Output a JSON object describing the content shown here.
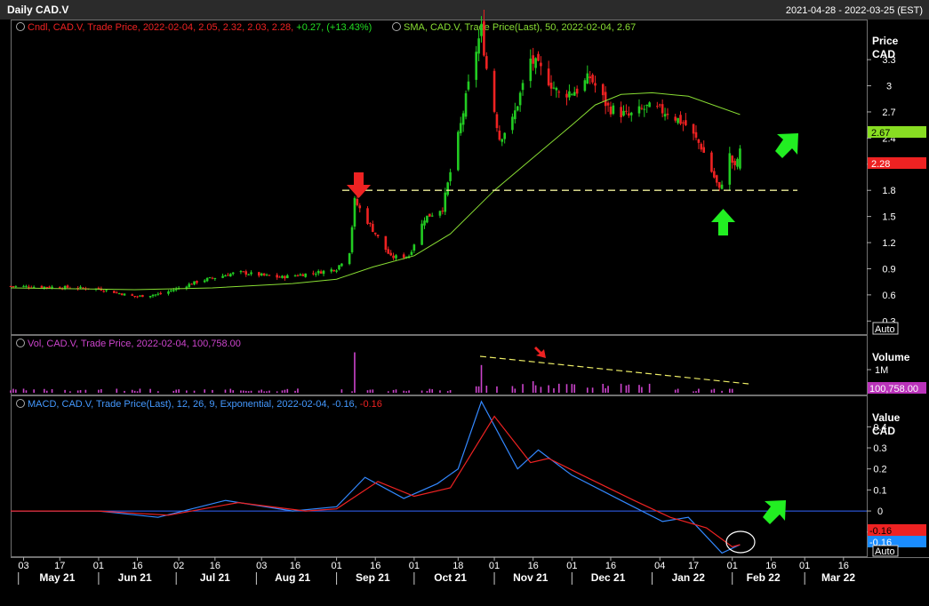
{
  "header": {
    "title": "Daily CAD.V",
    "range": "2021-04-28 - 2022-03-25 (EST)"
  },
  "colors": {
    "background": "#000000",
    "up": "#22cc22",
    "down": "#ee2222",
    "sma": "#88dd33",
    "volume": "#cc44cc",
    "macd": "#3388ff",
    "signal": "#ee2222",
    "zero_line": "#3366ff",
    "dashed": "#eeee88",
    "arrow_green": "#22ee22",
    "arrow_red": "#ee2222",
    "axis_text": "#ffffff"
  },
  "price_panel": {
    "legend_candle": "Cndl, CAD.V, Trade Price, 2022-02-04, 2.05, 2.32, 2.03, 2.28,",
    "legend_change": "+0.27, (+13.43%)",
    "legend_sma": "SMA, CAD.V, Trade Price(Last), 50, 2022-02-04, 2.67",
    "axis_title_1": "Price",
    "axis_title_2": "CAD",
    "y_ticks": [
      "3.3",
      "3",
      "2.7",
      "2.4",
      "2.1",
      "1.8",
      "1.5",
      "1.2",
      "0.9",
      "0.6",
      "0.3"
    ],
    "y_tick_values": [
      3.3,
      3.0,
      2.7,
      2.4,
      2.1,
      1.8,
      1.5,
      1.2,
      0.9,
      0.6,
      0.3
    ],
    "ylim": [
      0.15,
      3.75
    ],
    "sma_badge": "2.67",
    "last_badge": "2.28",
    "auto_label": "Auto",
    "support_level": 1.8
  },
  "volume_panel": {
    "legend": "Vol, CAD.V, Trade Price, 2022-02-04, 100,758.00",
    "axis_title": "Volume",
    "tick_label": "1M",
    "badge": "100,758.00",
    "ymax": 2000000
  },
  "macd_panel": {
    "legend": "MACD, CAD.V, Trade Price(Last), 12, 26, 9, Exponential, 2022-02-04, -0.16,",
    "legend_value": "-0.16",
    "axis_title_1": "Value",
    "axis_title_2": "CAD",
    "y_ticks": [
      "0.4",
      "0.3",
      "0.2",
      "0.1",
      "0",
      "-0.1"
    ],
    "y_tick_values": [
      0.4,
      0.3,
      0.2,
      0.1,
      0,
      -0.1
    ],
    "ylim": [
      -0.215,
      0.545
    ],
    "signal_badge": "-0.16",
    "macd_badge": "-0.16",
    "auto_label": "Auto"
  },
  "time_axis": {
    "day_ticks": [
      "03",
      "17",
      "01",
      "16",
      "02",
      "16",
      "03",
      "16",
      "01",
      "16",
      "01",
      "18",
      "01",
      "16",
      "01",
      "16",
      "04",
      "17",
      "01",
      "16",
      "01",
      "16"
    ],
    "month_labels": [
      "May 21",
      "Jun 21",
      "Jul 21",
      "Aug 21",
      "Sep 21",
      "Oct 21",
      "Nov 21",
      "Dec 21",
      "Jan 22",
      "Feb 22",
      "Mar 22"
    ]
  },
  "chart_data": [
    {
      "type": "candlestick",
      "title": "Daily CAD.V",
      "x_start": "2021-04-28",
      "x_end": "2022-03-25",
      "last_candle": {
        "date": "2022-02-04",
        "open": 2.05,
        "high": 2.32,
        "low": 2.03,
        "close": 2.28
      },
      "keypoints": [
        {
          "date": "2021-04-28",
          "close": 0.7
        },
        {
          "date": "2021-05-15",
          "close": 0.69
        },
        {
          "date": "2021-06-01",
          "close": 0.67
        },
        {
          "date": "2021-06-15",
          "close": 0.58
        },
        {
          "date": "2021-06-25",
          "close": 0.61
        },
        {
          "date": "2021-07-10",
          "close": 0.76
        },
        {
          "date": "2021-07-25",
          "close": 0.86
        },
        {
          "date": "2021-08-10",
          "close": 0.8
        },
        {
          "date": "2021-08-25",
          "close": 0.86
        },
        {
          "date": "2021-09-01",
          "close": 0.9
        },
        {
          "date": "2021-09-06",
          "close": 1.1
        },
        {
          "date": "2021-09-08",
          "close": 1.68
        },
        {
          "date": "2021-09-15",
          "close": 1.35
        },
        {
          "date": "2021-09-22",
          "close": 1.03
        },
        {
          "date": "2021-09-29",
          "close": 1.05
        },
        {
          "date": "2021-10-05",
          "close": 1.48
        },
        {
          "date": "2021-10-12",
          "close": 1.6
        },
        {
          "date": "2021-10-19",
          "close": 2.55
        },
        {
          "date": "2021-10-24",
          "close": 3.3
        },
        {
          "date": "2021-10-27",
          "close": 3.65
        },
        {
          "date": "2021-10-29",
          "close": 3.2
        },
        {
          "date": "2021-11-03",
          "close": 2.4
        },
        {
          "date": "2021-11-08",
          "close": 2.6
        },
        {
          "date": "2021-11-15",
          "close": 3.3
        },
        {
          "date": "2021-11-20",
          "close": 3.15
        },
        {
          "date": "2021-11-26",
          "close": 2.9
        },
        {
          "date": "2021-12-03",
          "close": 2.95
        },
        {
          "date": "2021-12-08",
          "close": 3.1
        },
        {
          "date": "2021-12-15",
          "close": 2.75
        },
        {
          "date": "2021-12-23",
          "close": 2.65
        },
        {
          "date": "2021-12-30",
          "close": 2.75
        },
        {
          "date": "2022-01-07",
          "close": 2.7
        },
        {
          "date": "2022-01-14",
          "close": 2.55
        },
        {
          "date": "2022-01-20",
          "close": 2.3
        },
        {
          "date": "2022-01-25",
          "close": 1.95
        },
        {
          "date": "2022-01-27",
          "close": 1.8
        },
        {
          "date": "2022-01-31",
          "close": 2.2
        },
        {
          "date": "2022-02-02",
          "close": 2.05
        },
        {
          "date": "2022-02-04",
          "close": 2.28
        }
      ]
    },
    {
      "type": "line",
      "series": [
        {
          "name": "SMA, CAD.V, Trade Price(Last), 50",
          "points": [
            {
              "date": "2021-04-28",
              "y": 0.68
            },
            {
              "date": "2021-06-15",
              "y": 0.66
            },
            {
              "date": "2021-07-15",
              "y": 0.68
            },
            {
              "date": "2021-08-15",
              "y": 0.73
            },
            {
              "date": "2021-09-01",
              "y": 0.78
            },
            {
              "date": "2021-09-15",
              "y": 0.92
            },
            {
              "date": "2021-10-01",
              "y": 1.05
            },
            {
              "date": "2021-10-15",
              "y": 1.3
            },
            {
              "date": "2021-11-01",
              "y": 1.8
            },
            {
              "date": "2021-11-15",
              "y": 2.15
            },
            {
              "date": "2021-12-01",
              "y": 2.55
            },
            {
              "date": "2021-12-10",
              "y": 2.78
            },
            {
              "date": "2021-12-20",
              "y": 2.9
            },
            {
              "date": "2022-01-01",
              "y": 2.92
            },
            {
              "date": "2022-01-15",
              "y": 2.88
            },
            {
              "date": "2022-02-04",
              "y": 2.67
            }
          ]
        }
      ]
    },
    {
      "type": "bar",
      "title": "Vol, CAD.V, Trade Price",
      "last": {
        "date": "2022-02-04",
        "y": 100758
      },
      "peaks": [
        {
          "date": "2021-05-06",
          "y": 350000
        },
        {
          "date": "2021-06-22",
          "y": 300000
        },
        {
          "date": "2021-09-08",
          "y": 1750000
        },
        {
          "date": "2021-09-09",
          "y": 1100000
        },
        {
          "date": "2021-10-21",
          "y": 900000
        },
        {
          "date": "2021-10-27",
          "y": 1200000
        },
        {
          "date": "2021-11-04",
          "y": 700000
        },
        {
          "date": "2021-11-16",
          "y": 500000
        },
        {
          "date": "2022-01-27",
          "y": 300000
        }
      ]
    },
    {
      "type": "line",
      "title": "MACD, CAD.V, Trade Price(Last), 12, 26, 9, Exponential",
      "series": [
        {
          "name": "MACD",
          "points": [
            {
              "date": "2021-04-28",
              "y": 0.0
            },
            {
              "date": "2021-06-01",
              "y": 0.0
            },
            {
              "date": "2021-06-24",
              "y": -0.03
            },
            {
              "date": "2021-07-20",
              "y": 0.05
            },
            {
              "date": "2021-08-15",
              "y": 0.0
            },
            {
              "date": "2021-09-01",
              "y": 0.02
            },
            {
              "date": "2021-09-12",
              "y": 0.16
            },
            {
              "date": "2021-09-27",
              "y": 0.06
            },
            {
              "date": "2021-10-10",
              "y": 0.13
            },
            {
              "date": "2021-10-18",
              "y": 0.2
            },
            {
              "date": "2021-10-27",
              "y": 0.52
            },
            {
              "date": "2021-11-10",
              "y": 0.2
            },
            {
              "date": "2021-11-18",
              "y": 0.29
            },
            {
              "date": "2021-12-01",
              "y": 0.17
            },
            {
              "date": "2021-12-20",
              "y": 0.05
            },
            {
              "date": "2022-01-05",
              "y": -0.05
            },
            {
              "date": "2022-01-15",
              "y": -0.03
            },
            {
              "date": "2022-01-28",
              "y": -0.2
            },
            {
              "date": "2022-02-04",
              "y": -0.16
            }
          ]
        },
        {
          "name": "Signal",
          "points": [
            {
              "date": "2021-04-28",
              "y": 0.0
            },
            {
              "date": "2021-06-01",
              "y": 0.0
            },
            {
              "date": "2021-06-28",
              "y": -0.02
            },
            {
              "date": "2021-07-25",
              "y": 0.04
            },
            {
              "date": "2021-08-20",
              "y": 0.0
            },
            {
              "date": "2021-09-01",
              "y": 0.01
            },
            {
              "date": "2021-09-17",
              "y": 0.14
            },
            {
              "date": "2021-10-01",
              "y": 0.07
            },
            {
              "date": "2021-10-15",
              "y": 0.11
            },
            {
              "date": "2021-10-22",
              "y": 0.25
            },
            {
              "date": "2021-11-01",
              "y": 0.45
            },
            {
              "date": "2021-11-15",
              "y": 0.23
            },
            {
              "date": "2021-11-22",
              "y": 0.25
            },
            {
              "date": "2021-12-05",
              "y": 0.17
            },
            {
              "date": "2021-12-25",
              "y": 0.05
            },
            {
              "date": "2022-01-08",
              "y": -0.03
            },
            {
              "date": "2022-01-22",
              "y": -0.08
            },
            {
              "date": "2022-02-01",
              "y": -0.17
            },
            {
              "date": "2022-02-04",
              "y": -0.16
            }
          ]
        }
      ],
      "ylim": [
        -0.215,
        0.545
      ],
      "zero_line": true
    }
  ]
}
